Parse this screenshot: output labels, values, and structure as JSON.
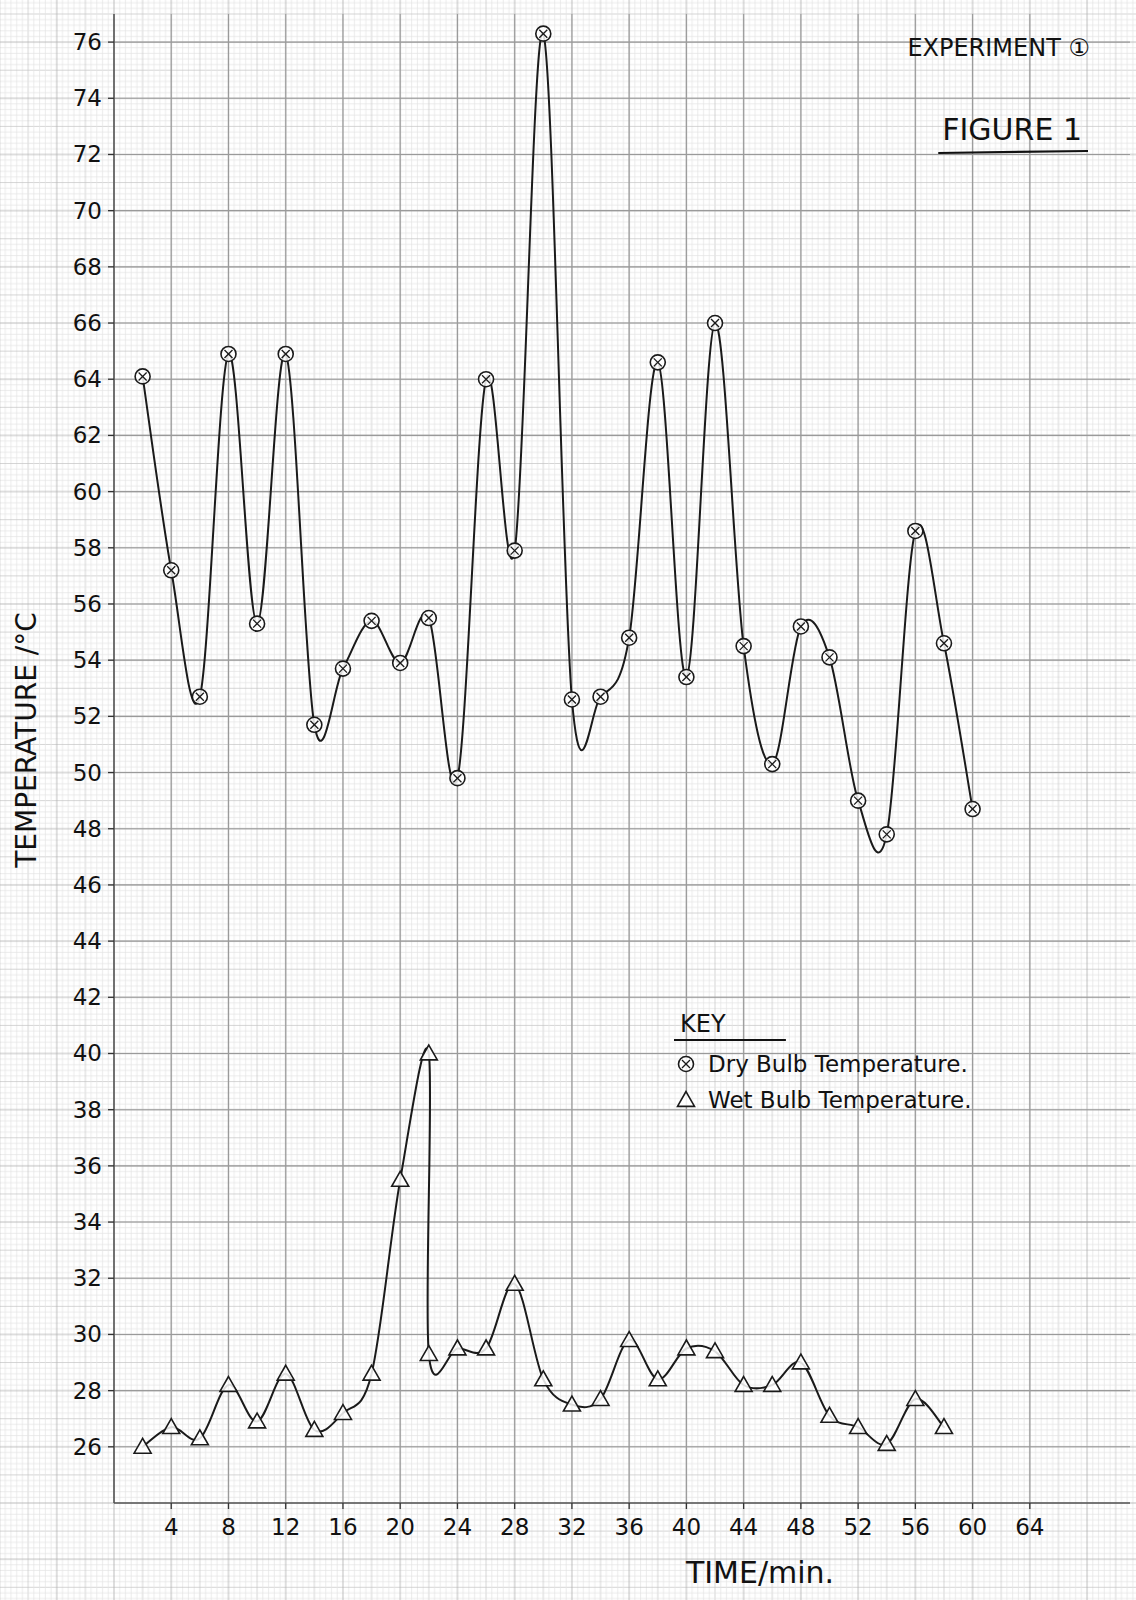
{
  "chart_data": {
    "type": "line",
    "title": "FIGURE 1",
    "subtitle": "EXPERIMENT ①",
    "x_label": "TIME/min.",
    "y_label": "TEMPERATURE /°C",
    "legend_title": "KEY",
    "legend": "right",
    "grid": true,
    "xlim": [
      0,
      71
    ],
    "ylim": [
      24,
      77
    ],
    "xticks": [
      4,
      8,
      12,
      16,
      20,
      24,
      28,
      32,
      36,
      40,
      44,
      48,
      52,
      56,
      60,
      64
    ],
    "yticks": [
      26,
      28,
      30,
      32,
      34,
      36,
      38,
      40,
      42,
      44,
      46,
      48,
      50,
      52,
      54,
      56,
      58,
      60,
      62,
      64,
      66,
      68,
      70,
      72,
      74,
      76
    ],
    "series": [
      {
        "name": "Dry Bulb Temperature.",
        "color": "#1a1a1a",
        "marker": "circled-x",
        "line_style": "solid",
        "x": [
          2,
          4,
          6,
          8,
          10,
          12,
          14,
          16,
          18,
          20,
          22,
          24,
          26,
          28,
          30,
          32,
          34,
          36,
          38,
          40,
          42,
          44,
          46,
          48,
          50,
          52,
          54,
          56,
          58,
          60
        ],
        "values": [
          64.1,
          57.2,
          52.7,
          64.9,
          55.3,
          64.9,
          51.7,
          53.7,
          55.4,
          53.9,
          55.5,
          49.8,
          64.0,
          57.9,
          76.3,
          52.6,
          52.7,
          54.8,
          64.6,
          53.4,
          66.0,
          54.5,
          50.3,
          55.2,
          54.1,
          49.0,
          47.8,
          58.6,
          54.6,
          48.7
        ]
      },
      {
        "name": "Wet Bulb Temperature.",
        "color": "#1a1a1a",
        "marker": "triangle",
        "line_style": "solid",
        "x": [
          2,
          4,
          6,
          8,
          10,
          12,
          14,
          16,
          18,
          20,
          22,
          22,
          24,
          26,
          28,
          30,
          32,
          34,
          36,
          38,
          40,
          42,
          44,
          46,
          48,
          50,
          52,
          54,
          56,
          58
        ],
        "values": [
          26.0,
          26.7,
          26.3,
          28.2,
          26.9,
          28.6,
          26.6,
          27.2,
          28.6,
          35.5,
          40.0,
          29.3,
          29.5,
          29.5,
          31.8,
          28.4,
          27.5,
          27.7,
          29.8,
          28.4,
          29.5,
          29.4,
          28.2,
          28.2,
          29.0,
          27.1,
          26.7,
          26.1,
          27.7,
          26.7
        ]
      }
    ]
  }
}
